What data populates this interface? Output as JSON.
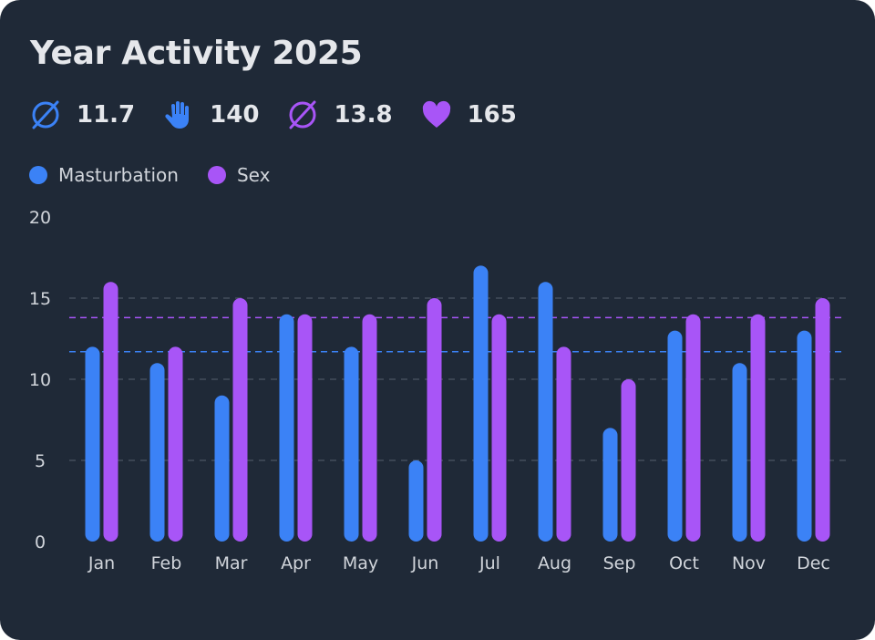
{
  "title": "Year Activity 2025",
  "stats": [
    {
      "icon": "average-icon",
      "value": "11.7",
      "color": "#3b82f6"
    },
    {
      "icon": "hand-icon",
      "value": "140",
      "color": "#3b82f6"
    },
    {
      "icon": "average-icon",
      "value": "13.8",
      "color": "#a855f7"
    },
    {
      "icon": "heart-icon",
      "value": "165",
      "color": "#a855f7"
    }
  ],
  "chart_data": {
    "type": "bar",
    "categories": [
      "Jan",
      "Feb",
      "Mar",
      "Apr",
      "May",
      "Jun",
      "Jul",
      "Aug",
      "Sep",
      "Oct",
      "Nov",
      "Dec"
    ],
    "series": [
      {
        "name": "Masturbation",
        "color": "#3b82f6",
        "values": [
          12,
          11,
          9,
          14,
          12,
          5,
          17,
          16,
          7,
          13,
          11,
          13
        ],
        "average": 11.7
      },
      {
        "name": "Sex",
        "color": "#a855f7",
        "values": [
          16,
          12,
          15,
          14,
          14,
          15,
          14,
          12,
          10,
          14,
          14,
          15
        ],
        "average": 13.8
      }
    ],
    "ylim": [
      0,
      20
    ],
    "yticks": [
      "0",
      "5",
      "10",
      "15",
      "20"
    ],
    "grid": true,
    "legend": "top-left"
  }
}
